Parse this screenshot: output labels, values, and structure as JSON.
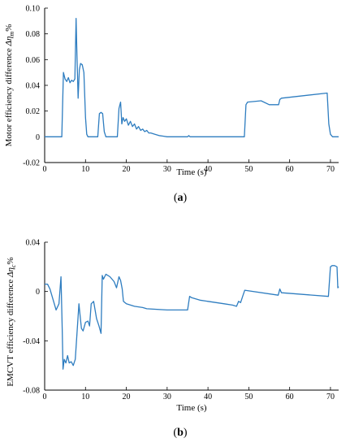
{
  "chart_data": [
    {
      "id": "a",
      "type": "line",
      "caption_label": "a",
      "xlabel": "Time (s)",
      "ylabel_prefix": "Motor efficiency difference  ",
      "ylabel_symbol": "Δη",
      "ylabel_sub": "m",
      "ylabel_suffix": "%",
      "xlim": [
        0,
        72
      ],
      "ylim": [
        -0.02,
        0.1
      ],
      "xticks": [
        0,
        10,
        20,
        30,
        40,
        50,
        60,
        70
      ],
      "yticks": [
        -0.02,
        0,
        0.02,
        0.04,
        0.06,
        0.08,
        0.1
      ],
      "ytick_labels": [
        "-0.02",
        "0",
        "0.02",
        "0.04",
        "0.06",
        "0.08",
        "0.10"
      ],
      "grid": false,
      "color": "#2e7dc0",
      "x": [
        0,
        4.2,
        4.6,
        5.0,
        5.4,
        5.8,
        6.2,
        6.6,
        7.0,
        7.4,
        7.7,
        7.9,
        8.2,
        8.5,
        8.8,
        9.2,
        9.6,
        10.0,
        10.3,
        10.6,
        13.0,
        13.4,
        13.8,
        14.2,
        14.6,
        15.0,
        17.8,
        18.2,
        18.6,
        18.9,
        19.2,
        19.6,
        20.0,
        20.5,
        21.0,
        21.5,
        22.0,
        22.5,
        23.0,
        23.5,
        24.0,
        24.5,
        25.0,
        25.5,
        26.0,
        27.0,
        28.0,
        29.0,
        30.0,
        31.0,
        35.0,
        35.3,
        35.6,
        40.0,
        45.0,
        48.9,
        49.3,
        49.7,
        53.0,
        55.0,
        57.3,
        57.6,
        58.0,
        69.2,
        69.6,
        70.0,
        70.5,
        71.0,
        72.0
      ],
      "y": [
        0,
        0,
        0.05,
        0.045,
        0.043,
        0.046,
        0.042,
        0.044,
        0.043,
        0.045,
        0.092,
        0.065,
        0.03,
        0.052,
        0.057,
        0.056,
        0.05,
        0.015,
        0.002,
        0,
        0,
        0.018,
        0.019,
        0.018,
        0.004,
        0,
        0,
        0.022,
        0.027,
        0.01,
        0.015,
        0.012,
        0.014,
        0.009,
        0.012,
        0.008,
        0.01,
        0.006,
        0.008,
        0.005,
        0.006,
        0.004,
        0.005,
        0.003,
        0.003,
        0.002,
        0.001,
        0.0005,
        0,
        0,
        0,
        0.001,
        0,
        0,
        0,
        0,
        0.025,
        0.027,
        0.028,
        0.025,
        0.025,
        0.029,
        0.03,
        0.034,
        0.01,
        0.002,
        0,
        0,
        0
      ]
    },
    {
      "id": "b",
      "type": "line",
      "caption_label": "b",
      "xlabel": "Time (s)",
      "ylabel_prefix": "EMCVT efficiency difference  ",
      "ylabel_symbol": "Δη",
      "ylabel_sub": "c",
      "ylabel_suffix": "%",
      "xlim": [
        0,
        72
      ],
      "ylim": [
        -0.08,
        0.04
      ],
      "xticks": [
        0,
        10,
        20,
        30,
        40,
        50,
        60,
        70
      ],
      "yticks": [
        -0.08,
        -0.04,
        0,
        0.04
      ],
      "ytick_labels": [
        "-0.08",
        "-0.04",
        "0",
        "0.04"
      ],
      "grid": false,
      "color": "#2e7dc0",
      "x": [
        0,
        0.7,
        1.3,
        2.0,
        2.8,
        3.5,
        4.0,
        4.3,
        4.5,
        4.8,
        5.2,
        5.6,
        6.0,
        6.5,
        7.0,
        7.5,
        7.8,
        8.1,
        8.4,
        8.7,
        9.0,
        9.4,
        10.0,
        10.6,
        11.0,
        11.4,
        12.0,
        12.7,
        13.3,
        13.8,
        14.1,
        14.4,
        15.0,
        16.0,
        17.0,
        17.6,
        18.2,
        18.6,
        19.0,
        19.3,
        20.0,
        22.0,
        24.0,
        25.0,
        30.0,
        35.0,
        35.5,
        36.0,
        38.0,
        40.0,
        42.0,
        44.0,
        46.0,
        47.0,
        47.5,
        48.0,
        48.5,
        49.0,
        57.2,
        57.6,
        58.0,
        69.5,
        70.0,
        70.4,
        71.0,
        71.6,
        71.8,
        72.0
      ],
      "y": [
        0.006,
        0.006,
        0.002,
        -0.006,
        -0.015,
        -0.01,
        0.012,
        -0.03,
        -0.063,
        -0.055,
        -0.058,
        -0.052,
        -0.058,
        -0.057,
        -0.06,
        -0.055,
        -0.04,
        -0.025,
        -0.01,
        -0.02,
        -0.03,
        -0.032,
        -0.025,
        -0.024,
        -0.028,
        -0.01,
        -0.008,
        -0.022,
        -0.028,
        -0.034,
        0.013,
        0.01,
        0.014,
        0.012,
        0.008,
        0.003,
        0.012,
        0.009,
        0.002,
        -0.008,
        -0.01,
        -0.012,
        -0.013,
        -0.014,
        -0.015,
        -0.015,
        -0.004,
        -0.005,
        -0.007,
        -0.008,
        -0.009,
        -0.01,
        -0.011,
        -0.012,
        -0.008,
        -0.009,
        -0.004,
        0.001,
        -0.003,
        0.002,
        -0.001,
        -0.004,
        0.02,
        0.021,
        0.021,
        0.02,
        0.003,
        0.004
      ]
    }
  ]
}
